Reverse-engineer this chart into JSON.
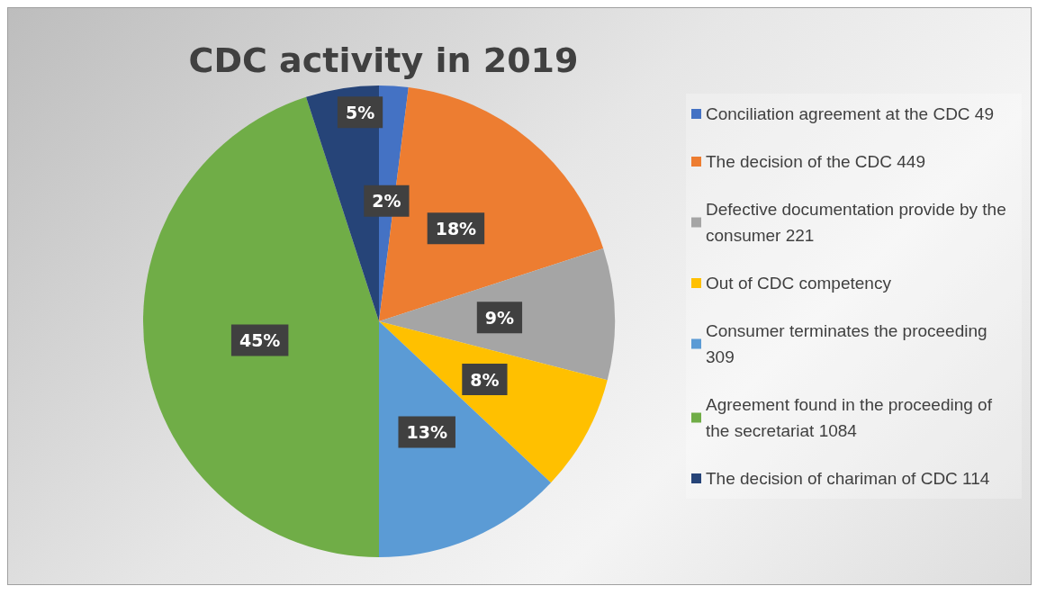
{
  "chart_data": {
    "type": "pie",
    "title": "CDC activity in 2019",
    "categories": [
      "Conciliation agreement at the CDC 49",
      "The decision of the CDC 449",
      "Defective documentation provide by the consumer 221",
      "Out of CDC competency",
      "Consumer terminates the proceeding 309",
      "Agreement found in the proceeding of the secretariat 1084",
      "The decision of chariman of CDC 114"
    ],
    "values": [
      2,
      18,
      9,
      8,
      13,
      45,
      5
    ],
    "value_labels": [
      "2%",
      "18%",
      "9%",
      "8%",
      "13%",
      "45%",
      "5%"
    ],
    "colors": [
      "#4472c4",
      "#ed7d31",
      "#a5a5a5",
      "#ffc000",
      "#5b9bd5",
      "#70ad47",
      "#264478"
    ],
    "legend": "right"
  }
}
